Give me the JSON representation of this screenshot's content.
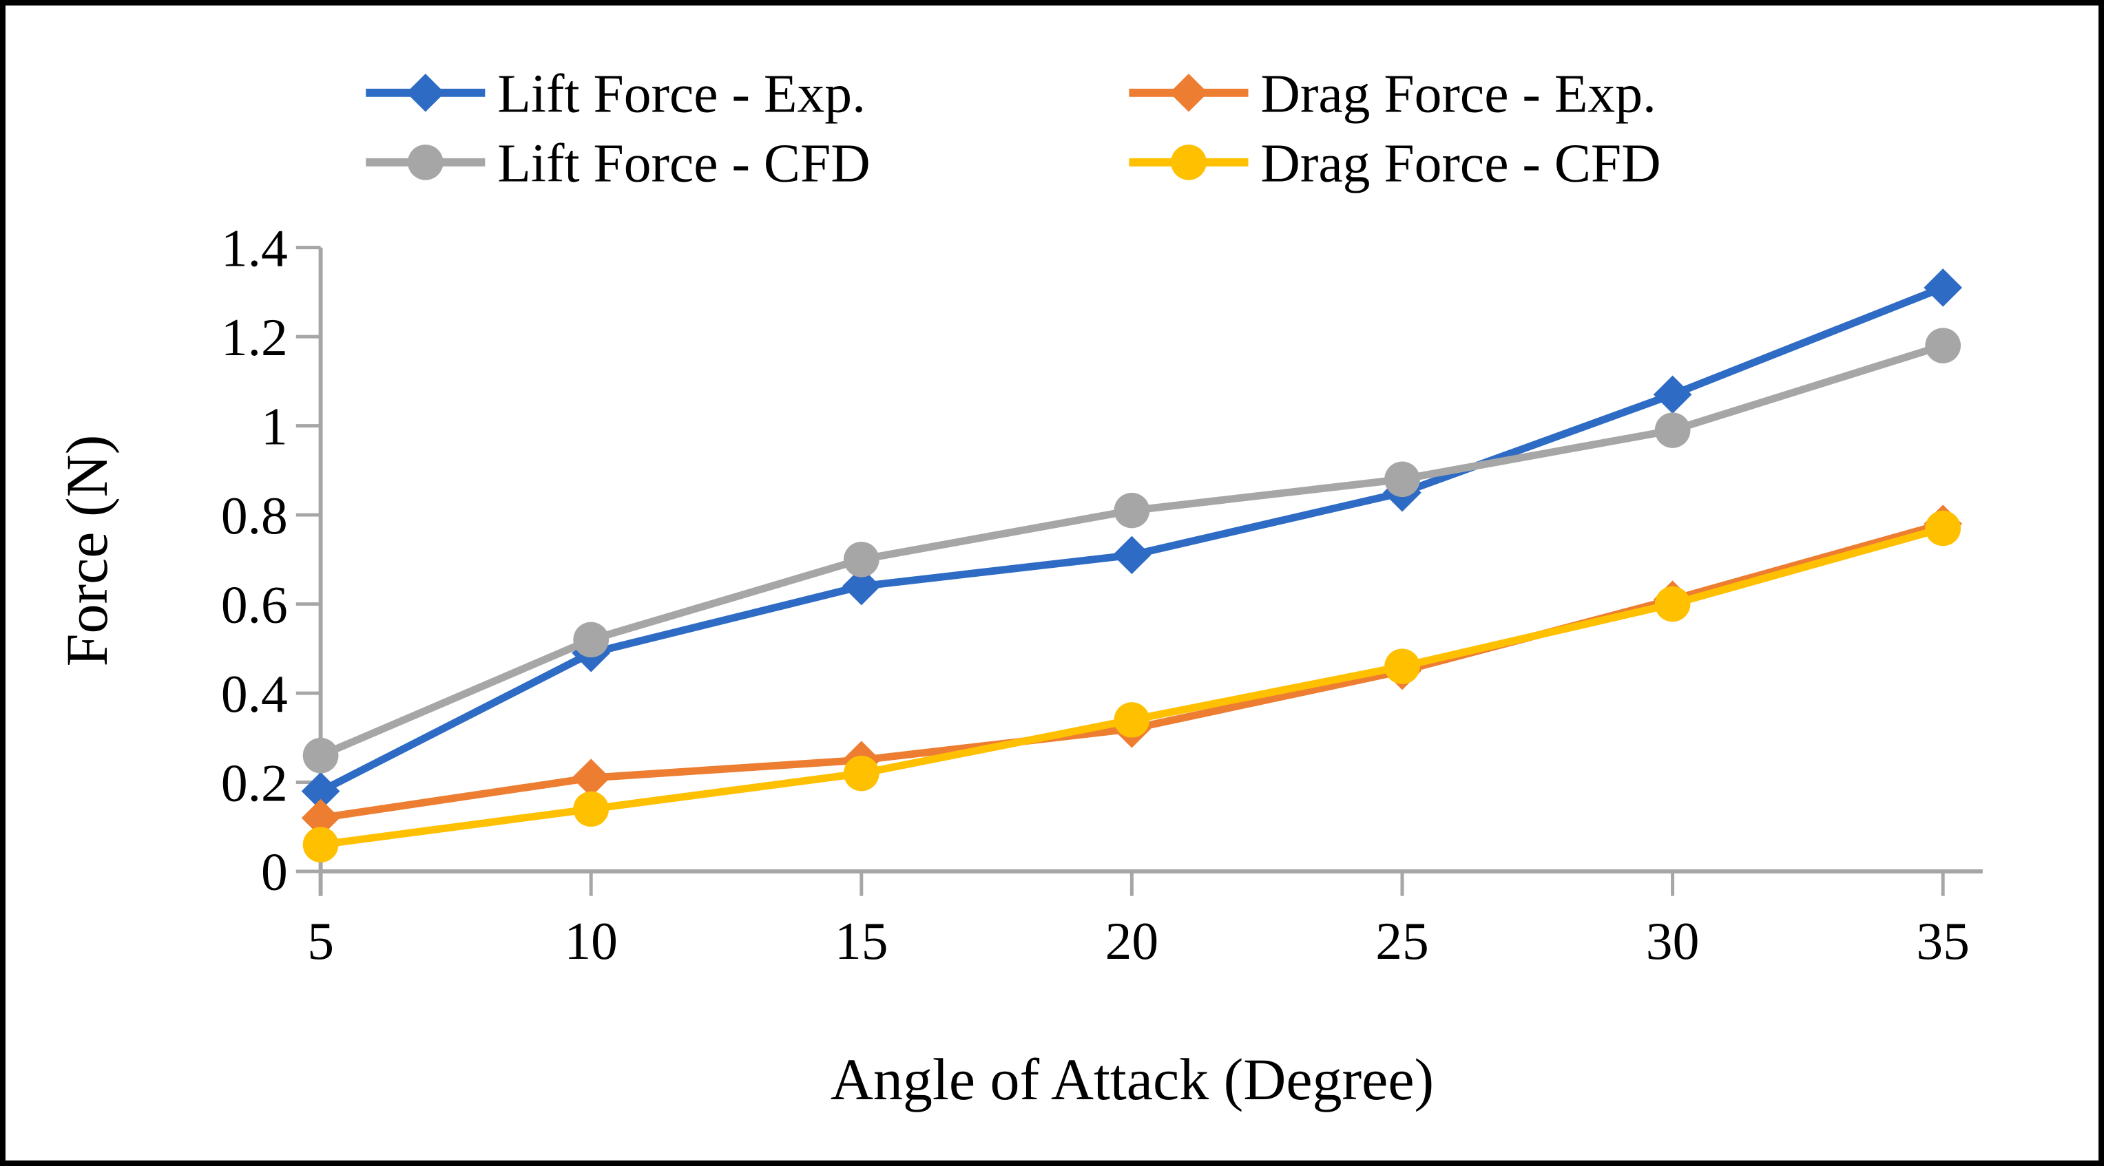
{
  "chart_data": {
    "type": "line",
    "title": "",
    "xlabel": "Angle of Attack (Degree)",
    "ylabel": "Force (N)",
    "x": [
      5,
      10,
      15,
      20,
      25,
      30,
      35
    ],
    "x_tick_labels": [
      "5",
      "10",
      "15",
      "20",
      "25",
      "30",
      "35"
    ],
    "y_ticks": [
      0,
      0.2,
      0.4,
      0.6,
      0.8,
      1,
      1.2,
      1.4
    ],
    "y_tick_labels": [
      "0",
      "0.2",
      "0.4",
      "0.6",
      "0.8",
      "1",
      "1.2",
      "1.4"
    ],
    "ylim": [
      0,
      1.4
    ],
    "grid": false,
    "legend_position": "top",
    "axis_color": "#A6A6A6",
    "text_color": "#000000",
    "series": [
      {
        "name": "Lift Force - Exp.",
        "color": "#2E6BC4",
        "marker": "diamond",
        "values": [
          0.18,
          0.49,
          0.64,
          0.71,
          0.85,
          1.07,
          1.31
        ]
      },
      {
        "name": "Drag Force - Exp.",
        "color": "#ED7D31",
        "marker": "diamond",
        "values": [
          0.12,
          0.21,
          0.25,
          0.32,
          0.45,
          0.61,
          0.78
        ]
      },
      {
        "name": "Lift Force - CFD",
        "color": "#A6A6A6",
        "marker": "circle",
        "values": [
          0.26,
          0.52,
          0.7,
          0.81,
          0.88,
          0.99,
          1.18
        ]
      },
      {
        "name": "Drag Force - CFD",
        "color": "#FFC000",
        "marker": "circle",
        "values": [
          0.06,
          0.14,
          0.22,
          0.34,
          0.46,
          0.6,
          0.77
        ]
      }
    ]
  }
}
